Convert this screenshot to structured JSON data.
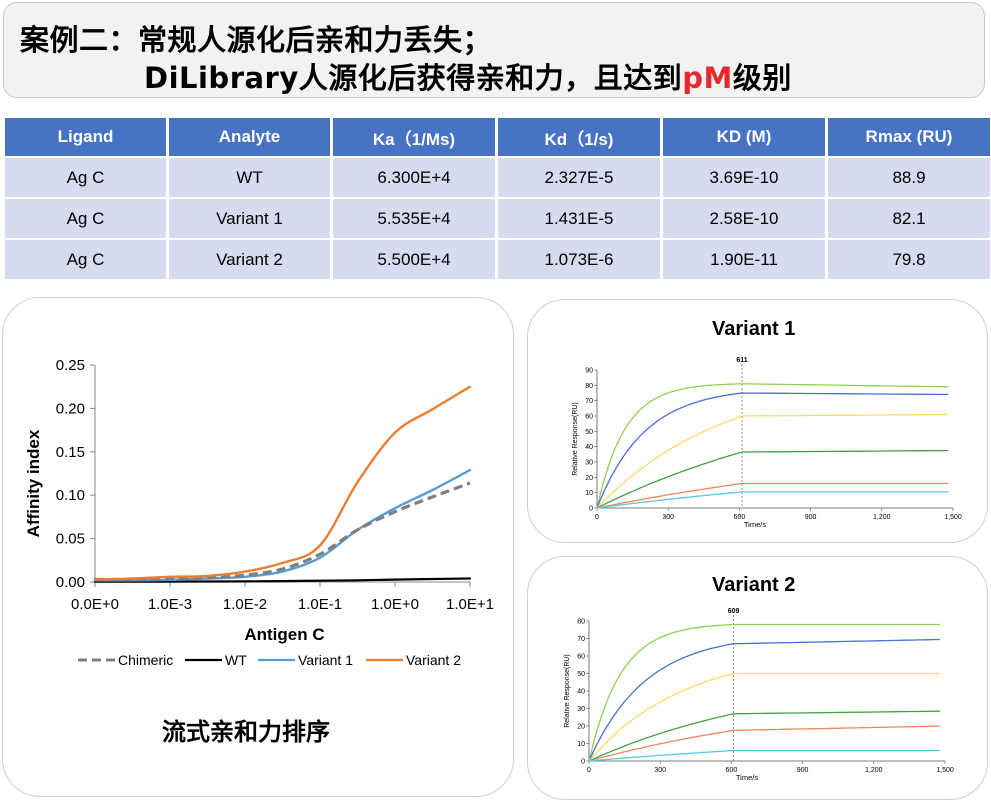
{
  "title": {
    "line1": "案例二：常规人源化后亲和力丢失；",
    "line2_prefix": "DiLibrary人源化后获得亲和力，且达到",
    "line2_accent": "pM",
    "line2_suffix": "级别"
  },
  "table": {
    "headers": [
      "Ligand",
      "Analyte",
      "Ka（1/Ms)",
      "Kd（1/s)",
      "KD (M)",
      "Rmax (RU)"
    ],
    "rows": [
      [
        "Ag C",
        "WT",
        "6.300E+4",
        "2.327E-5",
        "3.69E-10",
        "88.9"
      ],
      [
        "Ag C",
        "Variant 1",
        "5.535E+4",
        "1.431E-5",
        "2.58E-10",
        "82.1"
      ],
      [
        "Ag C",
        "Variant 2",
        "5.500E+4",
        "1.073E-6",
        "1.90E-11",
        "79.8"
      ]
    ]
  },
  "caption": "流式亲和力排序",
  "colors": {
    "header_bg": "#4673c3",
    "row_bg": "#d6dbef",
    "accent": "#e8282c"
  },
  "chart_data": [
    {
      "type": "line",
      "title": "",
      "xlabel": "Antigen C",
      "ylabel": "Affinity index",
      "x_scale": "log",
      "x_tick_labels": [
        "0.0E+0",
        "1.0E-3",
        "1.0E-2",
        "1.0E-1",
        "1.0E+0",
        "1.0E+1"
      ],
      "y_ticks": [
        "0.00",
        "0.05",
        "0.10",
        "0.15",
        "0.20",
        "0.25"
      ],
      "ylim": [
        0,
        0.25
      ],
      "grid": false,
      "legend": "bottom",
      "x": [
        0,
        1,
        2,
        3,
        4,
        5,
        6,
        7,
        8,
        9,
        10
      ],
      "series": [
        {
          "name": "Chimeric",
          "color": "#7f7f7f",
          "dash": "9,5",
          "values": [
            0.003,
            0.003,
            0.004,
            0.005,
            0.008,
            0.015,
            0.032,
            0.06,
            0.081,
            0.098,
            0.114
          ]
        },
        {
          "name": "WT",
          "color": "#000000",
          "dash": "",
          "values": [
            0.0005,
            0.0005,
            0.0005,
            0.0006,
            0.0007,
            0.001,
            0.0015,
            0.002,
            0.0028,
            0.0035,
            0.004
          ]
        },
        {
          "name": "Variant 1",
          "color": "#5b9bd5",
          "dash": "",
          "values": [
            0.002,
            0.002,
            0.0025,
            0.004,
            0.006,
            0.012,
            0.028,
            0.06,
            0.085,
            0.106,
            0.129
          ]
        },
        {
          "name": "Variant 2",
          "color": "#ed7d31",
          "dash": "",
          "values": [
            0.003,
            0.004,
            0.006,
            0.007,
            0.012,
            0.022,
            0.042,
            0.115,
            0.172,
            0.199,
            0.225
          ]
        }
      ]
    },
    {
      "type": "line",
      "title": "Variant 1",
      "xlabel": "Time/s",
      "ylabel": "Relative Response(RU)",
      "xlim": [
        0,
        1500
      ],
      "ylim": [
        0,
        90
      ],
      "x_ticks": [
        0,
        300,
        600,
        900,
        1200,
        1500
      ],
      "x_tick_labels": [
        "0",
        "300",
        "600",
        "900",
        "1,200",
        "1,500"
      ],
      "y_ticks": [
        0,
        10,
        20,
        30,
        40,
        50,
        60,
        70,
        80,
        90
      ],
      "marker": {
        "x": 611,
        "label": "611"
      },
      "series": [
        {
          "color": "#92d050",
          "rate": 0.0085,
          "plateau": 81,
          "end": 79
        },
        {
          "color": "#4a6fd8",
          "rate": 0.005,
          "plateau": 75,
          "end": 74
        },
        {
          "color": "#ffd966",
          "rate": 0.0018,
          "plateau": 60,
          "end": 61
        },
        {
          "color": "#3fa346",
          "rate": 0.0009,
          "plateau": 36.5,
          "end": 37.5
        },
        {
          "color": "#f4875a",
          "rate": 0.0006,
          "plateau": 16,
          "end": 16
        },
        {
          "color": "#56c8e8",
          "rate": 0.0006,
          "plateau": 10.5,
          "end": 10.5
        }
      ]
    },
    {
      "type": "line",
      "title": "Variant 2",
      "xlabel": "Time/s",
      "ylabel": "Relative Response(RU)",
      "xlim": [
        0,
        1500
      ],
      "ylim": [
        0,
        80
      ],
      "x_ticks": [
        0,
        300,
        600,
        900,
        1200,
        1500
      ],
      "x_tick_labels": [
        "0",
        "300",
        "600",
        "900",
        "1,200",
        "1,500"
      ],
      "y_ticks": [
        0,
        10,
        20,
        30,
        40,
        50,
        60,
        70,
        80
      ],
      "marker": {
        "x": 609,
        "label": "609"
      },
      "series": [
        {
          "color": "#92d050",
          "rate": 0.0075,
          "plateau": 78,
          "end": 78
        },
        {
          "color": "#4a6fd8",
          "rate": 0.0042,
          "plateau": 67,
          "end": 69.5
        },
        {
          "color": "#ffd966",
          "rate": 0.0025,
          "plateau": 50,
          "end": 50
        },
        {
          "color": "#3fa346",
          "rate": 0.0012,
          "plateau": 27,
          "end": 28.5
        },
        {
          "color": "#f4875a",
          "rate": 0.0009,
          "plateau": 17.5,
          "end": 20
        },
        {
          "color": "#56c8e8",
          "rate": 0.0006,
          "plateau": 6,
          "end": 6
        }
      ]
    }
  ]
}
